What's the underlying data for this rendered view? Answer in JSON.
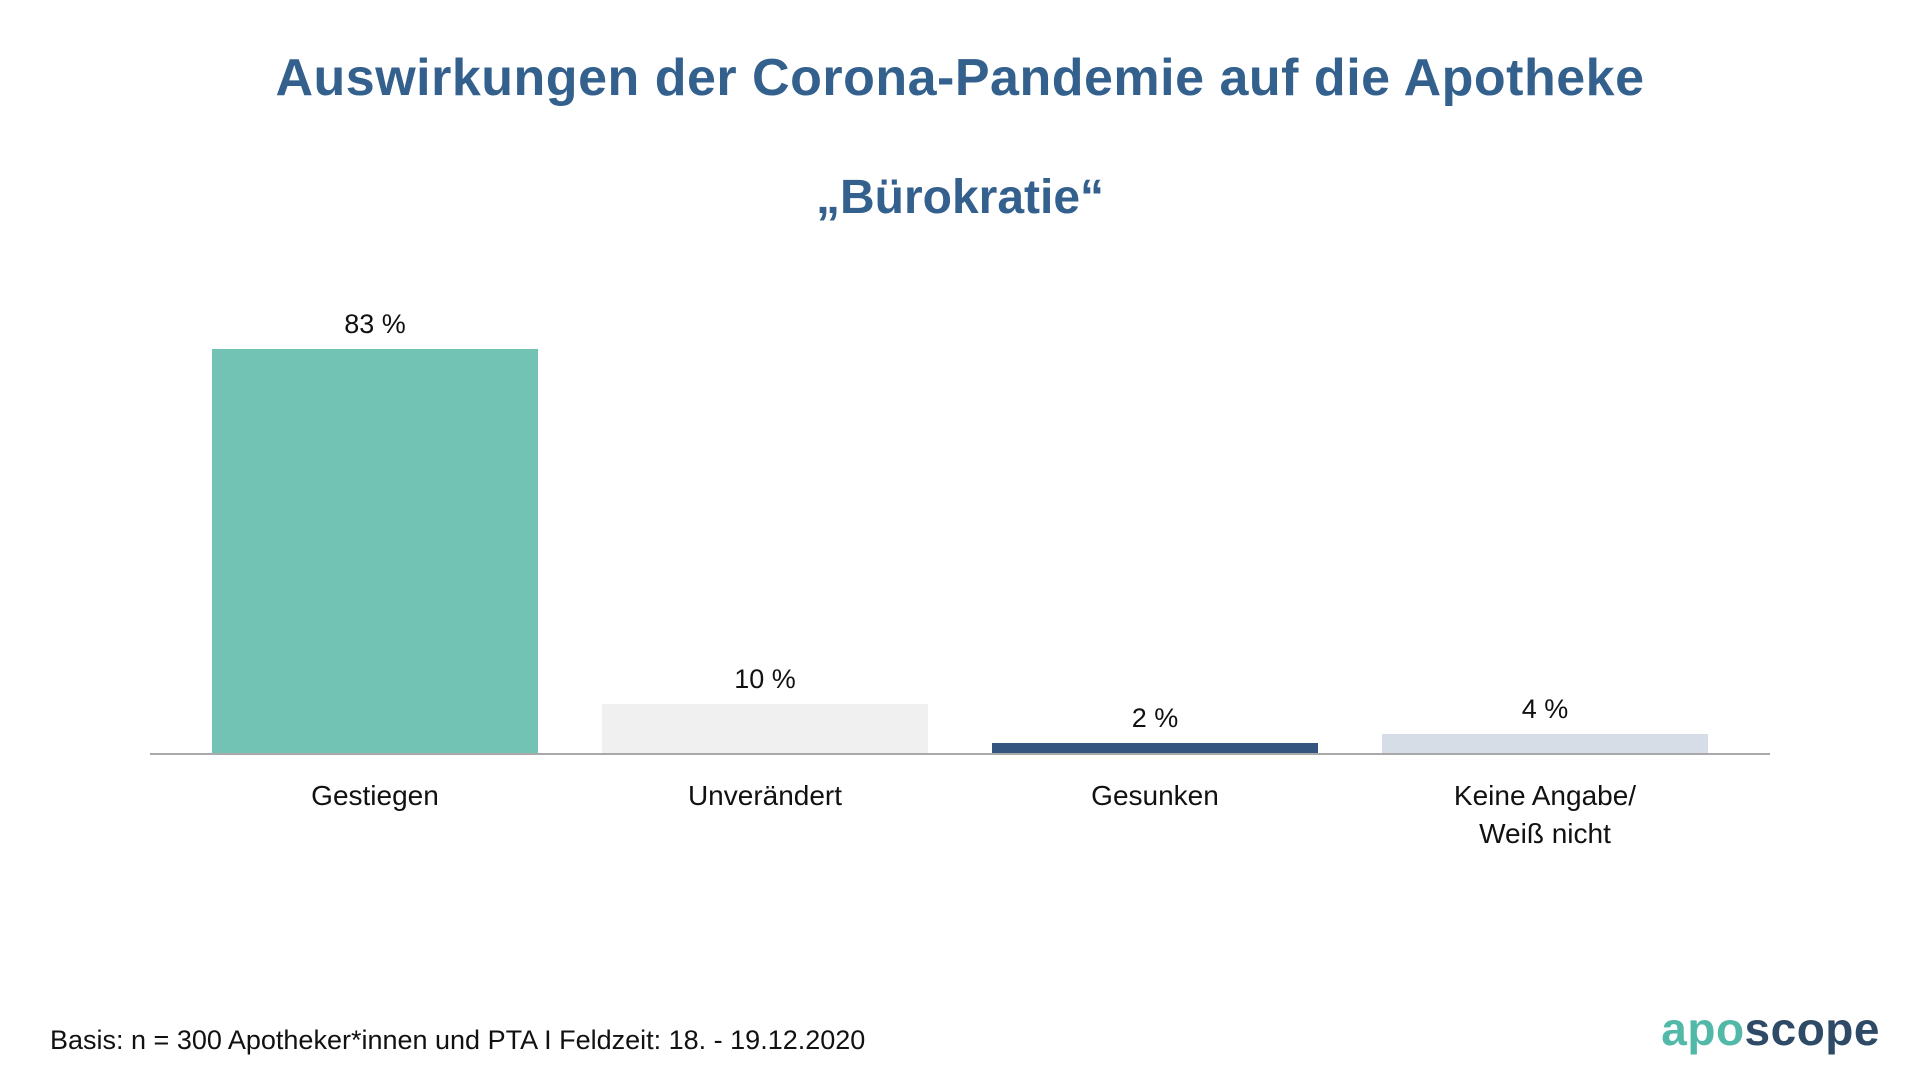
{
  "header": {
    "title": "Auswirkungen der Corona-Pandemie auf die Apotheke",
    "subtitle": "„Bürokratie“"
  },
  "chart_data": {
    "type": "bar",
    "title": "Auswirkungen der Corona-Pandemie auf die Apotheke – „Bürokratie“",
    "categories": [
      "Gestiegen",
      "Unverändert",
      "Gesunken",
      "Keine Angabe/\nWeiß nicht"
    ],
    "values": [
      83,
      10,
      2,
      4
    ],
    "value_labels": [
      "83 %",
      "10 %",
      "2 %",
      "4 %"
    ],
    "bar_colors": [
      "#72c3b4",
      "#f0f0f0",
      "#33557f",
      "#d7dde6"
    ],
    "xlabel": "",
    "ylabel": "",
    "ylim": [
      0,
      100
    ],
    "grid": false,
    "legend": "none"
  },
  "footer": {
    "basis": "Basis: n = 300 Apotheker*innen und PTA I Feldzeit: 18. - 19.12.2020",
    "logo": {
      "part1": "apo",
      "part2": "scope",
      "color1": "#52b9a9",
      "color2": "#2e4a66"
    }
  }
}
